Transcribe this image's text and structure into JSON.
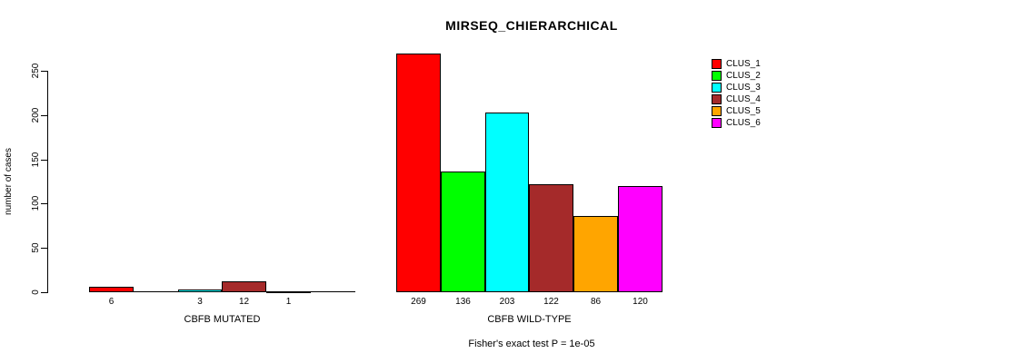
{
  "title": "MIRSEQ_CHIERARCHICAL",
  "chart_data": {
    "type": "bar",
    "title": "MIRSEQ_CHIERARCHICAL",
    "xlabel": "",
    "ylabel": "number of cases",
    "ylim": [
      0,
      250
    ],
    "yticks": [
      0,
      50,
      100,
      150,
      200,
      250
    ],
    "grid": false,
    "legend_position": "right",
    "series_names": [
      "CLUS_1",
      "CLUS_2",
      "CLUS_3",
      "CLUS_4",
      "CLUS_5",
      "CLUS_6"
    ],
    "series_colors": [
      "#FF0000",
      "#00FF00",
      "#00FFFF",
      "#A52A2A",
      "#FFA500",
      "#FF00FF"
    ],
    "groups": [
      {
        "label": "CBFB MUTATED",
        "values": [
          6,
          0,
          3,
          12,
          1,
          0
        ],
        "bar_labels": [
          "6",
          "",
          "3",
          "12",
          "1",
          ""
        ]
      },
      {
        "label": "CBFB WILD-TYPE",
        "values": [
          269,
          136,
          203,
          122,
          86,
          120
        ],
        "bar_labels": [
          "269",
          "136",
          "203",
          "122",
          "86",
          "120"
        ]
      }
    ],
    "annotation": "Fisher's exact test P = 1e-05",
    "axis_color": "#000000",
    "background_color": "#FFFFFF"
  },
  "legend": {
    "items": [
      {
        "label": "CLUS_1",
        "color": "#FF0000"
      },
      {
        "label": "CLUS_2",
        "color": "#00FF00"
      },
      {
        "label": "CLUS_3",
        "color": "#00FFFF"
      },
      {
        "label": "CLUS_4",
        "color": "#A52A2A"
      },
      {
        "label": "CLUS_5",
        "color": "#FFA500"
      },
      {
        "label": "CLUS_6",
        "color": "#FF00FF"
      }
    ]
  }
}
